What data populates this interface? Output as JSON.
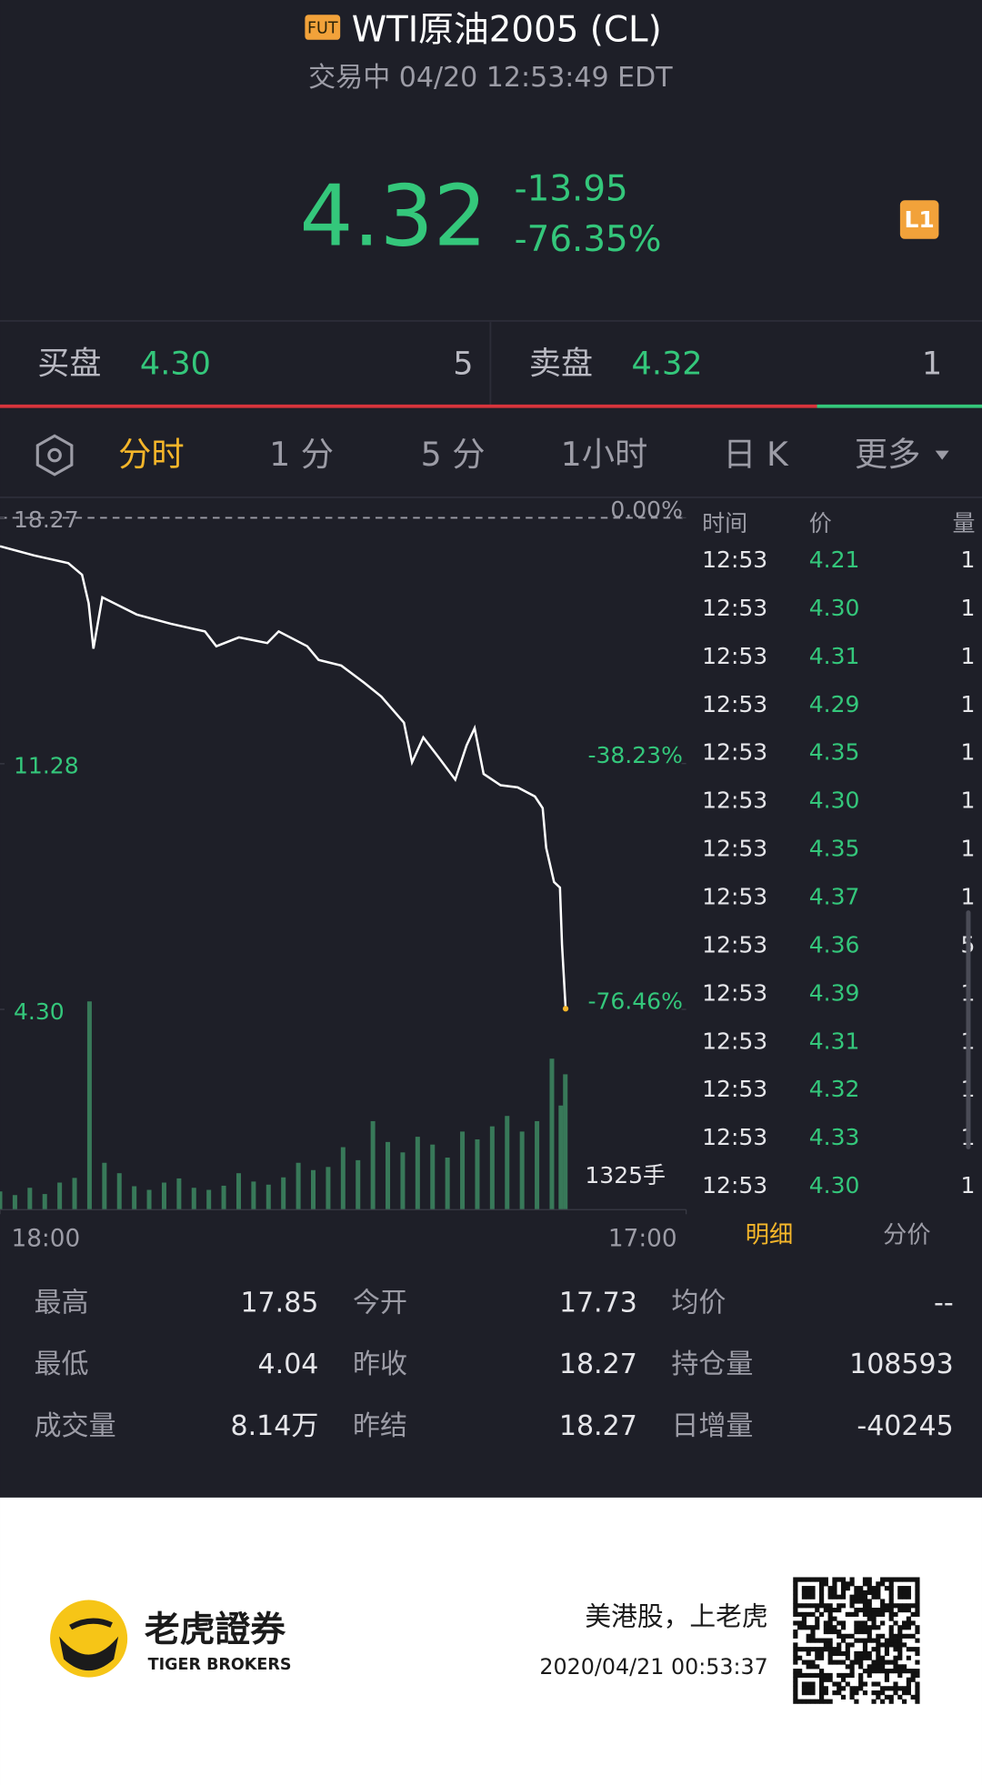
{
  "header": {
    "badge": "FUT",
    "title": "WTI原油2005 (CL)",
    "status": "交易中 04/20 12:53:49 EDT"
  },
  "quote": {
    "price": "4.32",
    "change": "-13.95",
    "change_pct": "-76.35%",
    "level_badge": "L1"
  },
  "order_book": {
    "bid": {
      "label": "买盘",
      "price": "4.30",
      "size": "5"
    },
    "ask": {
      "label": "卖盘",
      "price": "4.32",
      "size": "1"
    }
  },
  "tabs": [
    "分时",
    "1 分",
    "5 分",
    "1小时",
    "日 K",
    "更多"
  ],
  "chart_data": {
    "type": "line",
    "x": [
      0,
      1.14,
      2.29,
      2.75,
      2.97,
      3.13,
      3.43,
      4.58,
      5.72,
      6.87,
      7.25,
      8.01,
      8.96,
      9.34,
      10.3,
      10.68,
      11.44,
      12.21,
      12.78,
      13.54,
      13.81,
      14.19,
      14.69,
      15.26,
      15.64,
      15.91,
      16.21,
      16.78,
      17.35,
      17.93,
      18.19,
      18.31,
      18.57,
      18.77,
      18.84,
      18.96
    ],
    "series": [
      {
        "color": "#ffffff",
        "values": [
          17.46,
          17.2,
          16.98,
          16.65,
          15.84,
          14.55,
          16.01,
          15.52,
          15.26,
          15.04,
          14.62,
          14.87,
          14.71,
          15.04,
          14.62,
          14.23,
          14.07,
          13.58,
          13.19,
          12.45,
          11.32,
          12.03,
          11.48,
          10.83,
          11.8,
          12.29,
          10.99,
          10.67,
          10.61,
          10.35,
          10.02,
          8.89,
          7.92,
          7.76,
          6.14,
          4.32
        ]
      }
    ],
    "xlim": [
      0,
      23
    ],
    "xticks": [
      {
        "value": 0,
        "label": "18:00"
      },
      {
        "value": 23,
        "label": "17:00"
      }
    ],
    "ylim": [
      4.3,
      18.27
    ],
    "yticks": [
      18.27,
      11.28,
      {
        "value": 4.3,
        "label": "4.30"
      }
    ],
    "y2lim": [
      -76.46,
      0
    ],
    "y2ticks": [
      {
        "value": 0,
        "label": "0.00%"
      },
      -38.23,
      -76.46
    ],
    "y2_label_suffix_ticks": [
      {
        "value": 0,
        "label": "0.00%"
      },
      {
        "value": -38.23,
        "label": "-38.23%"
      },
      {
        "value": -76.46,
        "label": "-76.46%"
      }
    ],
    "reference_line": 18.27,
    "volume": {
      "label": "1325手",
      "color": "#3d8a62",
      "ylim": [
        0,
        4000
      ],
      "x": [
        0,
        0.5,
        1,
        1.5,
        2,
        2.5,
        3,
        3.5,
        4,
        4.5,
        5,
        5.5,
        6,
        6.5,
        7,
        7.5,
        8,
        8.5,
        9,
        9.5,
        10,
        10.5,
        11,
        11.5,
        12,
        12.5,
        13,
        13.5,
        14,
        14.5,
        15,
        15.5,
        16,
        16.5,
        17,
        17.5,
        18,
        18.5,
        18.8,
        18.95
      ],
      "values": [
        350,
        280,
        420,
        300,
        520,
        610,
        4000,
        900,
        700,
        450,
        380,
        520,
        600,
        420,
        380,
        460,
        700,
        540,
        480,
        620,
        900,
        760,
        820,
        1200,
        950,
        1700,
        1300,
        1100,
        1400,
        1250,
        1000,
        1500,
        1350,
        1600,
        1800,
        1500,
        1700,
        2900,
        2000,
        2600
      ]
    }
  },
  "trades": {
    "headers": [
      "时间",
      "价",
      "量"
    ],
    "rows": [
      [
        "12:53",
        "4.21",
        "1"
      ],
      [
        "12:53",
        "4.30",
        "1"
      ],
      [
        "12:53",
        "4.31",
        "1"
      ],
      [
        "12:53",
        "4.29",
        "1"
      ],
      [
        "12:53",
        "4.35",
        "1"
      ],
      [
        "12:53",
        "4.30",
        "1"
      ],
      [
        "12:53",
        "4.35",
        "1"
      ],
      [
        "12:53",
        "4.37",
        "1"
      ],
      [
        "12:53",
        "4.36",
        "5"
      ],
      [
        "12:53",
        "4.39",
        "1"
      ],
      [
        "12:53",
        "4.31",
        "1"
      ],
      [
        "12:53",
        "4.32",
        "1"
      ],
      [
        "12:53",
        "4.33",
        "1"
      ],
      [
        "12:53",
        "4.30",
        "1"
      ]
    ],
    "tabs": [
      "明细",
      "分价"
    ]
  },
  "stats": [
    [
      [
        "最高",
        "17.85"
      ],
      [
        "今开",
        "17.73"
      ],
      [
        "均价",
        "--"
      ]
    ],
    [
      [
        "最低",
        "4.04"
      ],
      [
        "昨收",
        "18.27"
      ],
      [
        "持仓量",
        "108593"
      ]
    ],
    [
      [
        "成交量",
        "8.14万"
      ],
      [
        "昨结",
        "18.27"
      ],
      [
        "日增量",
        "-40245"
      ]
    ]
  ],
  "footer": {
    "brand": "老虎證券",
    "brand_en": "TIGER BROKERS",
    "slogan": "美港股，上老虎",
    "timestamp": "2020/04/21 00:53:37"
  }
}
